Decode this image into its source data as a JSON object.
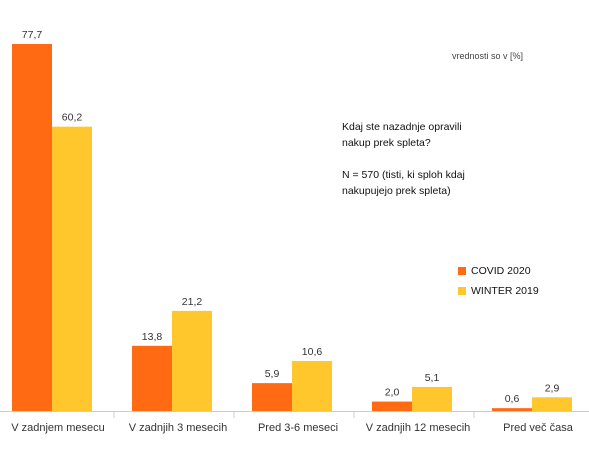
{
  "units_note": "vrednosti so v [%]",
  "question": {
    "line1": "Kdaj ste nazadnje opravili",
    "line2": "nakup prek spleta?",
    "sample": "N = 570 (tisti, ki sploh kdaj",
    "sample2": "nakupujejo prek spleta)"
  },
  "colors": {
    "covid": "#ff6a13",
    "winter": "#ffc72c",
    "axis": "#cccccc",
    "label": "#333333"
  },
  "chart_data": {
    "type": "bar",
    "categories": [
      "V zadnjem mesecu",
      "V zadnjih 3 mesecih",
      "Pred 3-6 meseci",
      "V zadnjih 12 mesecih",
      "Pred več časa"
    ],
    "series": [
      {
        "name": "COVID 2020",
        "values": [
          77.7,
          13.8,
          5.9,
          2.0,
          0.6
        ],
        "labels": [
          "77,7",
          "13,8",
          "5,9",
          "2,0",
          "0,6"
        ]
      },
      {
        "name": "WINTER 2019",
        "values": [
          60.2,
          21.2,
          10.6,
          5.1,
          2.9
        ],
        "labels": [
          "60,2",
          "21,2",
          "10,6",
          "5,1",
          "2,9"
        ]
      }
    ],
    "ylim": [
      0,
      77.7
    ],
    "grid": false,
    "legend_position": "right"
  }
}
